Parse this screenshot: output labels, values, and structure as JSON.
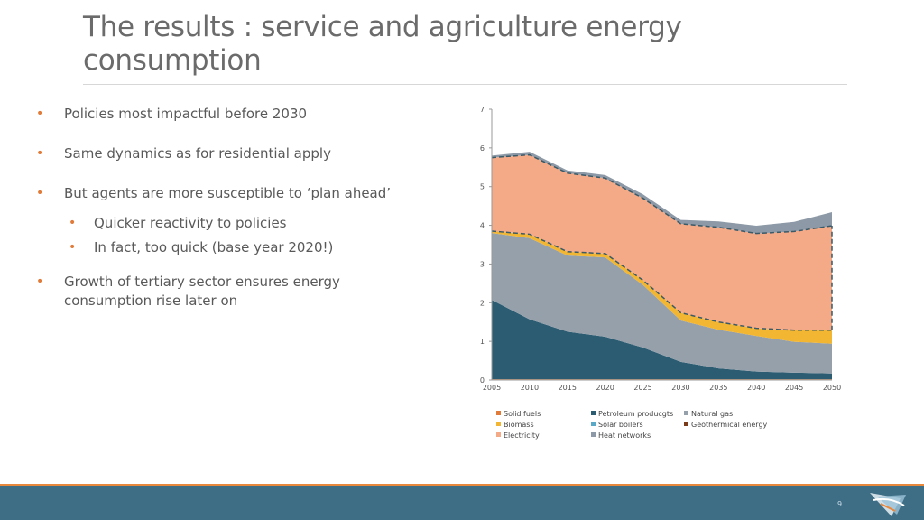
{
  "slide": {
    "title": "The results : service and agriculture energy consumption",
    "page_number": "9"
  },
  "bullets": [
    {
      "text": "Policies most impactful before 2030",
      "level": 1
    },
    {
      "text": "Same dynamics as for residential apply",
      "level": 1
    },
    {
      "text": "But agents are more susceptible to ‘plan ahead’",
      "level": 1
    },
    {
      "text": "Quicker reactivity to policies",
      "level": 2
    },
    {
      "text": "In fact, too quick (base year 2020!)",
      "level": 2
    },
    {
      "text": "Growth of tertiary sector ensures energy",
      "level": 1
    },
    {
      "text": "consumption rise later on",
      "level": 1
    }
  ],
  "colors": {
    "accent_orange": "#e07b39",
    "footer_blue": "#3e6d86",
    "title_gray": "#6b6b6b"
  },
  "chart_data": {
    "type": "area",
    "stacked": true,
    "x": [
      2005,
      2010,
      2015,
      2020,
      2025,
      2030,
      2035,
      2040,
      2045,
      2050
    ],
    "x_ticks": [
      "2005",
      "2010",
      "2015",
      "2020",
      "2025",
      "2030",
      "2035",
      "2040",
      "2045",
      "2050"
    ],
    "y_ticks": [
      "0",
      "1",
      "2",
      "3",
      "4",
      "5",
      "6",
      "7"
    ],
    "ylim": [
      0,
      7
    ],
    "series": [
      {
        "name": "Solid fuels",
        "color": "#e07b39",
        "values": [
          0.02,
          0.02,
          0.02,
          0.02,
          0.02,
          0.02,
          0.02,
          0.02,
          0.02,
          0.02
        ]
      },
      {
        "name": "Petroleum producgts",
        "color": "#2b5c72",
        "values": [
          2.05,
          1.55,
          1.23,
          1.1,
          0.82,
          0.45,
          0.28,
          0.2,
          0.17,
          0.15
        ]
      },
      {
        "name": "Natural gas",
        "color": "#96a0ab",
        "values": [
          1.73,
          2.1,
          1.97,
          2.05,
          1.62,
          1.07,
          1.0,
          0.92,
          0.8,
          0.77
        ]
      },
      {
        "name": "Biomass",
        "color": "#f2b632",
        "values": [
          0.05,
          0.1,
          0.1,
          0.1,
          0.12,
          0.2,
          0.2,
          0.2,
          0.3,
          0.35
        ]
      },
      {
        "name": "Solar boilers",
        "color": "#5aa9c6",
        "values": [
          0.0,
          0.0,
          0.0,
          0.0,
          0.0,
          0.0,
          0.0,
          0.0,
          0.0,
          0.0
        ]
      },
      {
        "name": "Geothermical energy",
        "color": "#7a3b1a",
        "values": [
          0.0,
          0.0,
          0.0,
          0.0,
          0.0,
          0.0,
          0.0,
          0.0,
          0.0,
          0.0
        ]
      },
      {
        "name": "Electricity",
        "color": "#f4a987",
        "values": [
          1.9,
          2.05,
          2.03,
          1.95,
          2.12,
          2.3,
          2.45,
          2.45,
          2.55,
          2.7
        ]
      },
      {
        "name": "Heat networks",
        "color": "#8d99a6",
        "values": [
          0.05,
          0.08,
          0.07,
          0.08,
          0.1,
          0.1,
          0.15,
          0.2,
          0.25,
          0.35
        ]
      }
    ],
    "legend": [
      "Solid fuels",
      "Petroleum producgts",
      "Natural gas",
      "Biomass",
      "Solar boilers",
      "Geothermical energy",
      "Electricity",
      "Heat networks"
    ],
    "title": "",
    "xlabel": "",
    "ylabel": ""
  }
}
